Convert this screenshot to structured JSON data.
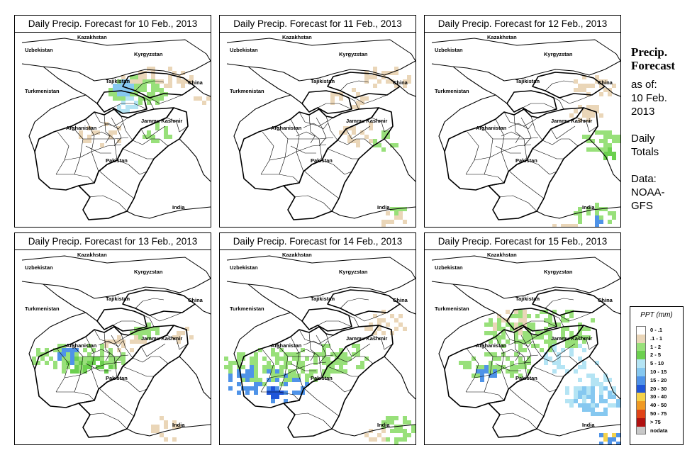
{
  "panels": [
    {
      "title": "Daily Precip. Forecast for  10 Feb., 2013"
    },
    {
      "title": "Daily Precip. Forecast for  11 Feb., 2013"
    },
    {
      "title": "Daily Precip. Forecast for  12 Feb., 2013"
    },
    {
      "title": "Daily Precip. Forecast for  13 Feb., 2013"
    },
    {
      "title": "Daily Precip. Forecast for  14 Feb., 2013"
    },
    {
      "title": "Daily Precip. Forecast for  15 Feb., 2013"
    }
  ],
  "map_labels": {
    "kazakhstan": "Kazakhstan",
    "uzbekistan": "Uzbekistan",
    "kyrgyzstan": "Kyrgyzstan",
    "tajikistan": "Tajikistan",
    "turkmenistan": "Turkmenistan",
    "china": "China",
    "afghanistan": "Afghanistan",
    "jammu_kashmir": "Jammu Kashmir",
    "pakistan": "Pakistan",
    "india": "India"
  },
  "sidebar": {
    "heading_line1": "Precip.",
    "heading_line2": "Forecast",
    "as_of": "as of:",
    "date_line1": "10 Feb.",
    "date_line2": "2013",
    "totals_line1": "Daily",
    "totals_line2": "Totals",
    "data_line1": "Data:",
    "data_line2": "NOAA-",
    "data_line3": "GFS"
  },
  "legend": {
    "title": "PPT (mm)",
    "items": [
      {
        "label": "0 - .1",
        "color": "#ffffff"
      },
      {
        "label": ".1 - 1",
        "color": "#ead6b8"
      },
      {
        "label": "1 - 2",
        "color": "#98e07a"
      },
      {
        "label": "2 - 5",
        "color": "#6cd04f"
      },
      {
        "label": "5 - 10",
        "color": "#b4e4f4"
      },
      {
        "label": "10 - 15",
        "color": "#86c8f0"
      },
      {
        "label": "15 - 20",
        "color": "#4f93e8"
      },
      {
        "label": "20 - 30",
        "color": "#1f55d8"
      },
      {
        "label": "30 - 40",
        "color": "#f5d24a"
      },
      {
        "label": "40 - 50",
        "color": "#f09a24"
      },
      {
        "label": "50 - 75",
        "color": "#e04418"
      },
      {
        "label": "> 75",
        "color": "#b01010"
      },
      {
        "label": "nodata",
        "color": "#c8c8c8"
      }
    ]
  }
}
